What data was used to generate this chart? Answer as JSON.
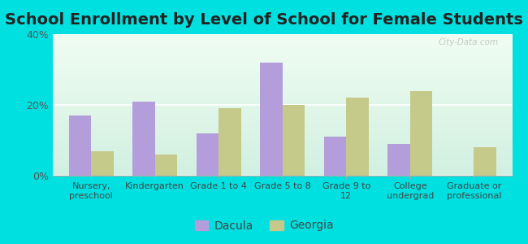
{
  "title": "School Enrollment by Level of School for Female Students",
  "categories": [
    "Nursery,\npreschool",
    "Kindergarten",
    "Grade 1 to 4",
    "Grade 5 to 8",
    "Grade 9 to\n12",
    "College\nundergrad",
    "Graduate or\nprofessional"
  ],
  "dacula": [
    17,
    21,
    12,
    32,
    11,
    9,
    0
  ],
  "georgia": [
    7,
    6,
    19,
    20,
    22,
    24,
    8
  ],
  "dacula_color": "#b39ddb",
  "georgia_color": "#c5c98a",
  "background_color": "#00e0e0",
  "ylim": [
    0,
    40
  ],
  "yticks": [
    0,
    20,
    40
  ],
  "ytick_labels": [
    "0%",
    "20%",
    "40%"
  ],
  "legend_labels": [
    "Dacula",
    "Georgia"
  ],
  "title_fontsize": 14,
  "watermark": "City-Data.com"
}
